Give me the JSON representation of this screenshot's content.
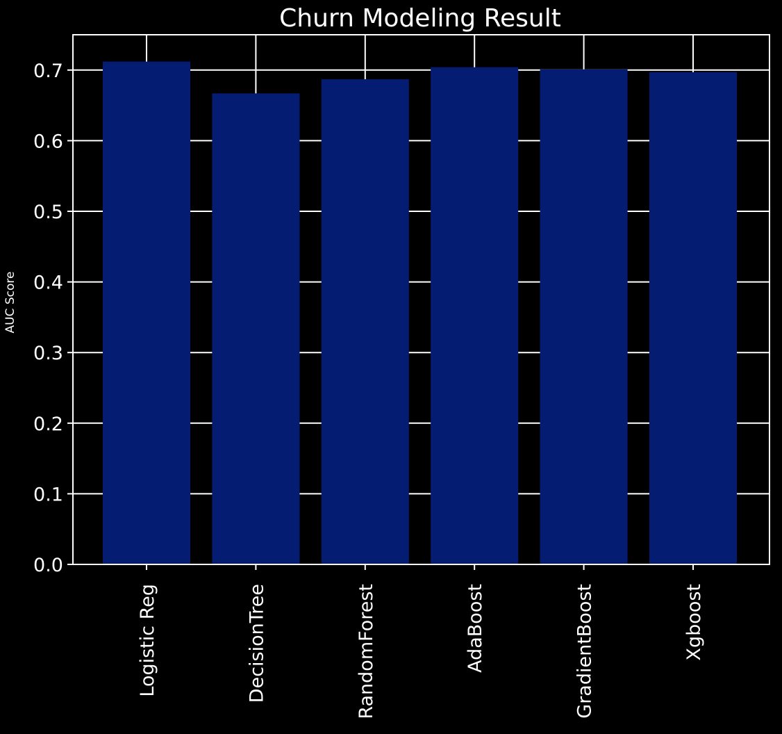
{
  "chart_data": {
    "type": "bar",
    "title": "Churn Modeling Result",
    "xlabel": "",
    "ylabel": "AUC Score",
    "categories": [
      "Logistic Reg",
      "DecisionTree",
      "RandomForest",
      "AdaBoost",
      "GradientBoost",
      "Xgboost"
    ],
    "values": [
      0.712,
      0.667,
      0.687,
      0.704,
      0.701,
      0.697
    ],
    "ylim": [
      0.0,
      0.75
    ],
    "yticks": [
      "0.0",
      "0.1",
      "0.2",
      "0.3",
      "0.4",
      "0.5",
      "0.6",
      "0.7"
    ],
    "grid": true,
    "colors": {
      "background": "#000000",
      "bar": "#041c71",
      "foreground": "#ffffff"
    }
  }
}
